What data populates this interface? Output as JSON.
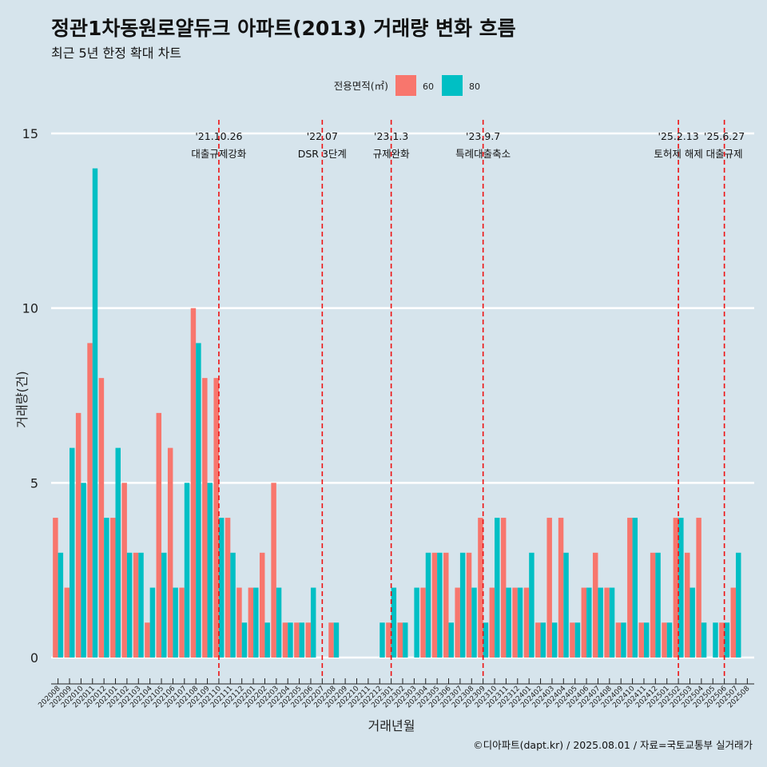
{
  "header": {
    "title": "정관1차동원로얄듀크 아파트(2013) 거래량 변화 흐름",
    "subtitle": "최근 5년 한정 확대 차트",
    "caption": "©디아파트(dapt.kr) / 2025.08.01 / 자료=국토교통부 실거래가"
  },
  "colors": {
    "background": "#d6e4ec",
    "series_60": "#f8766d",
    "series_80": "#00bfc4",
    "event_line": "#ee1111",
    "grid": "#ffffff"
  },
  "chart_data": {
    "type": "bar",
    "xlabel": "거래년월",
    "ylabel": "거래량(건)",
    "ylim": [
      0,
      15
    ],
    "yticks": [
      0,
      5,
      10,
      15
    ],
    "legend": {
      "title": "전용면적(㎡)",
      "position": "top"
    },
    "categories": [
      "202008",
      "202009",
      "202010",
      "202011",
      "202012",
      "202101",
      "202102",
      "202103",
      "202104",
      "202105",
      "202106",
      "202107",
      "202108",
      "202109",
      "202110",
      "202111",
      "202112",
      "202201",
      "202202",
      "202203",
      "202204",
      "202205",
      "202206",
      "202207",
      "202208",
      "202209",
      "202210",
      "202211",
      "202212",
      "202301",
      "202302",
      "202303",
      "202304",
      "202305",
      "202306",
      "202307",
      "202308",
      "202309",
      "202310",
      "202311",
      "202312",
      "202401",
      "202402",
      "202403",
      "202404",
      "202405",
      "202406",
      "202407",
      "202408",
      "202409",
      "202410",
      "202411",
      "202412",
      "202501",
      "202502",
      "202503",
      "202504",
      "202505",
      "202506",
      "202507",
      "202508"
    ],
    "series": [
      {
        "name": "60",
        "values": [
          4,
          2,
          7,
          9,
          8,
          4,
          5,
          3,
          1,
          7,
          6,
          2,
          10,
          8,
          8,
          4,
          2,
          2,
          3,
          5,
          1,
          1,
          1,
          0,
          1,
          0,
          0,
          0,
          0,
          1,
          1,
          0,
          2,
          3,
          3,
          2,
          3,
          4,
          2,
          4,
          2,
          2,
          1,
          4,
          4,
          1,
          2,
          3,
          2,
          1,
          4,
          1,
          3,
          1,
          4,
          3,
          4,
          0,
          1,
          2,
          0
        ]
      },
      {
        "name": "80",
        "values": [
          3,
          6,
          5,
          14,
          4,
          6,
          3,
          3,
          2,
          3,
          2,
          5,
          9,
          5,
          4,
          3,
          1,
          2,
          1,
          2,
          1,
          1,
          2,
          0,
          1,
          0,
          0,
          0,
          1,
          2,
          1,
          2,
          3,
          3,
          1,
          3,
          2,
          1,
          4,
          2,
          2,
          3,
          1,
          1,
          3,
          1,
          2,
          2,
          2,
          1,
          4,
          1,
          3,
          1,
          4,
          2,
          1,
          1,
          1,
          3,
          0
        ]
      }
    ],
    "events": [
      {
        "index": 14,
        "date": "'21.10.26",
        "label": "대출규제강화"
      },
      {
        "index": 23,
        "date": "'22.07",
        "label": "DSR 3단계"
      },
      {
        "index": 29,
        "date": "'23.1.3",
        "label": "규제완화"
      },
      {
        "index": 37,
        "date": "'23.9.7",
        "label": "특례대출축소"
      },
      {
        "index": 54,
        "date": "'25.2.13",
        "label": "토허제 해제"
      },
      {
        "index": 58,
        "date": "'25.6.27",
        "label": "대출규제"
      }
    ]
  }
}
